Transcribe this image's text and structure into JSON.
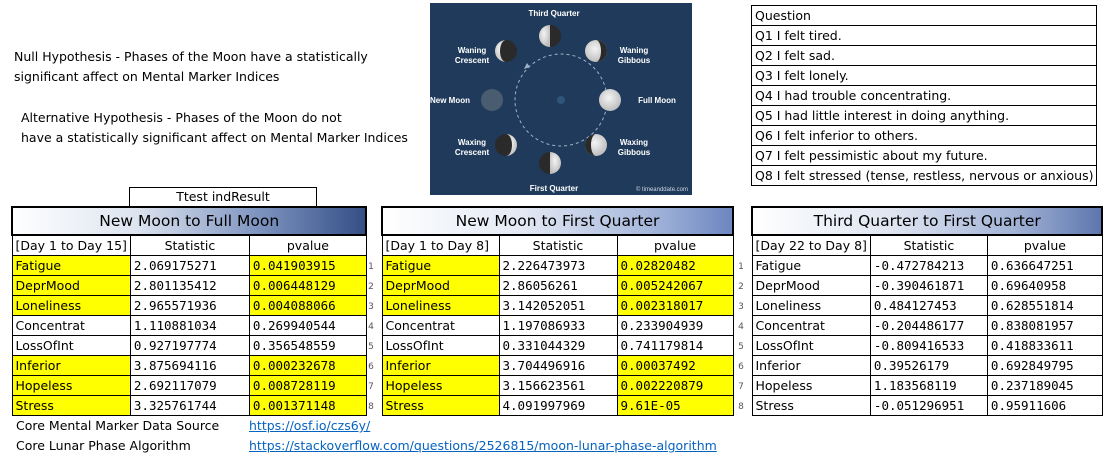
{
  "hypotheses": {
    "null_line1": "Null Hypothesis - Phases of the Moon have a statistically",
    "null_line2": "significant affect on Mental Marker Indices",
    "alt_line1": "Alternative Hypothesis - Phases of the Moon do not",
    "alt_line2": "have a statistically significant affect on Mental Marker Indices"
  },
  "moon_diagram": {
    "labels": {
      "third_quarter": "Third Quarter",
      "waning_crescent_1": "Waning",
      "waning_crescent_2": "Crescent",
      "waning_gibbous_1": "Waning",
      "waning_gibbous_2": "Gibbous",
      "new_moon": "New Moon",
      "full_moon": "Full Moon",
      "waxing_crescent_1": "Waxing",
      "waxing_crescent_2": "Crescent",
      "waxing_gibbous_1": "Waxing",
      "waxing_gibbous_2": "Gibbous",
      "first_quarter": "First Quarter",
      "credit": "© timeanddate.com"
    },
    "background_color": "#1f3a5a"
  },
  "questions": {
    "header": "Question",
    "items": [
      "Q1 I felt tired.",
      "Q2 I felt sad.",
      "Q3 I felt lonely.",
      "Q4 I had trouble concentrating.",
      "Q5 I had little interest in doing anything.",
      "Q6 I felt inferior to others.",
      "Q7 I felt pessimistic about my future.",
      "Q8 I felt stressed (tense, restless, nervous or anxious)"
    ]
  },
  "ttest_label": "Ttest indResult",
  "tables": [
    {
      "title": "New Moon to Full Moon",
      "range": "[Day 1 to Day 15]",
      "col_statistic": "Statistic",
      "col_pvalue": "pvalue",
      "rows": [
        {
          "name": "Fatigue",
          "statistic": "2.069175271",
          "pvalue": "0.041903915",
          "highlight": true
        },
        {
          "name": "DeprMood",
          "statistic": "2.801135412",
          "pvalue": "0.006448129",
          "highlight": true
        },
        {
          "name": "Loneliness",
          "statistic": "2.965571936",
          "pvalue": "0.004088066",
          "highlight": true
        },
        {
          "name": "Concentrat",
          "statistic": "1.110881034",
          "pvalue": "0.269940544",
          "highlight": false
        },
        {
          "name": "LossOfInt",
          "statistic": "0.927197774",
          "pvalue": "0.356548559",
          "highlight": false
        },
        {
          "name": "Inferior",
          "statistic": "3.875694116",
          "pvalue": "0.000232678",
          "highlight": true
        },
        {
          "name": "Hopeless",
          "statistic": "2.692117079",
          "pvalue": "0.008728119",
          "highlight": true
        },
        {
          "name": "Stress",
          "statistic": "3.325761744",
          "pvalue": "0.001371148",
          "highlight": true
        }
      ]
    },
    {
      "title": "New Moon to First Quarter",
      "range": "[Day 1 to Day 8]",
      "col_statistic": "Statistic",
      "col_pvalue": "pvalue",
      "rows": [
        {
          "name": "Fatigue",
          "statistic": "2.226473973",
          "pvalue": "0.02820482",
          "highlight": true
        },
        {
          "name": "DeprMood",
          "statistic": "2.86056261",
          "pvalue": "0.005242067",
          "highlight": true
        },
        {
          "name": "Loneliness",
          "statistic": "3.142052051",
          "pvalue": "0.002318017",
          "highlight": true
        },
        {
          "name": "Concentrat",
          "statistic": "1.197086933",
          "pvalue": "0.233904939",
          "highlight": false
        },
        {
          "name": "LossOfInt",
          "statistic": "0.331044329",
          "pvalue": "0.741179814",
          "highlight": false
        },
        {
          "name": "Inferior",
          "statistic": "3.704496916",
          "pvalue": "0.00037492",
          "highlight": true
        },
        {
          "name": "Hopeless",
          "statistic": "3.156623561",
          "pvalue": "0.002220879",
          "highlight": true
        },
        {
          "name": "Stress",
          "statistic": "4.091997969",
          "pvalue": "9.61E-05",
          "highlight": true
        }
      ]
    },
    {
      "title": "Third Quarter to First Quarter",
      "range": "[Day 22 to Day 8]",
      "col_statistic": "Statistic",
      "col_pvalue": "pvalue",
      "rows": [
        {
          "name": "Fatigue",
          "statistic": "-0.472784213",
          "pvalue": "0.636647251",
          "highlight": false
        },
        {
          "name": "DeprMood",
          "statistic": "-0.390461871",
          "pvalue": "0.69640958",
          "highlight": false
        },
        {
          "name": "Loneliness",
          "statistic": "0.484127453",
          "pvalue": "0.628551814",
          "highlight": false
        },
        {
          "name": "Concentrat",
          "statistic": "-0.204486177",
          "pvalue": "0.838081957",
          "highlight": false
        },
        {
          "name": "LossOfInt",
          "statistic": "-0.809416533",
          "pvalue": "0.418833611",
          "highlight": false
        },
        {
          "name": "Inferior",
          "statistic": "0.39526179",
          "pvalue": "0.692849795",
          "highlight": false
        },
        {
          "name": "Hopeless",
          "statistic": "1.183568119",
          "pvalue": "0.237189045",
          "highlight": false
        },
        {
          "name": "Stress",
          "statistic": "-0.051296951",
          "pvalue": "0.95911606",
          "highlight": false
        }
      ]
    }
  ],
  "row_numbers": [
    "1",
    "2",
    "3",
    "4",
    "5",
    "6",
    "7",
    "8"
  ],
  "footer": {
    "data_source_label": "Core Mental Marker Data Source",
    "data_source_link": "https://osf.io/czs6y/",
    "algorithm_label": "Core Lunar Phase Algorithm",
    "algorithm_link": "https://stackoverflow.com/questions/2526815/moon-lunar-phase-algorithm"
  },
  "colors": {
    "highlight": "#ffff00",
    "link": "#0563c1",
    "moon_bg": "#1f3a5a"
  }
}
